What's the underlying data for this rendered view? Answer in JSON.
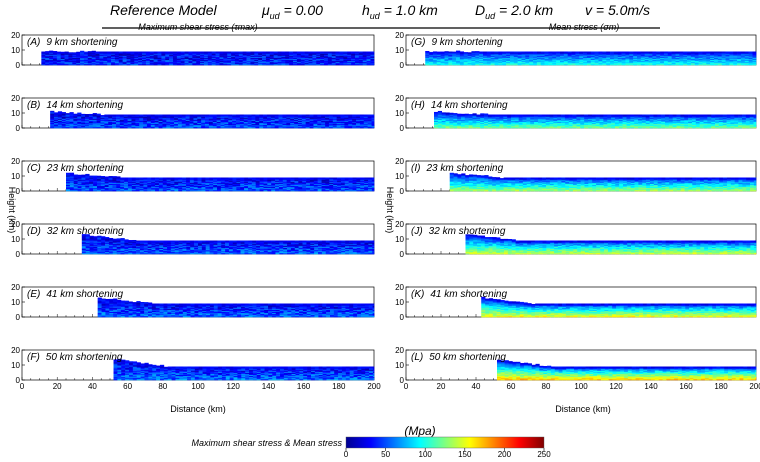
{
  "header": {
    "title": "Reference  Model",
    "mu": "μ",
    "mu_sub": "ud",
    "mu_val": " = 0.00",
    "h": "h",
    "h_sub": "ud",
    "h_val": " = 1.0 km",
    "D": "D",
    "D_sub": "ud",
    "D_val": " = 2.0 km",
    "v": "v = 5.0m/s"
  },
  "columns": {
    "left": "Maximum shear stress (τmax)",
    "right": "Mean stress (σm)"
  },
  "axes": {
    "ylabel": "Height (km)",
    "xlabel": "Distance (km)",
    "x_ticks": [
      "0",
      "20",
      "40",
      "60",
      "80",
      "100",
      "120",
      "140",
      "160",
      "180",
      "200"
    ],
    "y_ticks": [
      "0",
      "10",
      "20"
    ],
    "xlim": [
      0,
      200
    ],
    "ylim": [
      0,
      20
    ]
  },
  "colorbar": {
    "title": "(Mpa)",
    "label": "Maximum shear stress & Mean stress",
    "ticks": [
      "0",
      "50",
      "100",
      "150",
      "200",
      "250"
    ],
    "range": [
      0,
      250
    ]
  },
  "chart_data": {
    "type": "heatmap",
    "panels": [
      {
        "letter": "(A)",
        "label": "9 km shortening",
        "quantity": "max_shear",
        "col": 0,
        "row": 0,
        "x_start": 11,
        "x_end": 200,
        "thickness": 9,
        "max_height": 9,
        "level": 0.15
      },
      {
        "letter": "(B)",
        "label": "14 km shortening",
        "quantity": "max_shear",
        "col": 0,
        "row": 1,
        "x_start": 16,
        "x_end": 200,
        "thickness": 9,
        "max_height": 11,
        "level": 0.2
      },
      {
        "letter": "(C)",
        "label": "23 km shortening",
        "quantity": "max_shear",
        "col": 0,
        "row": 2,
        "x_start": 25,
        "x_end": 200,
        "thickness": 9,
        "max_height": 12,
        "level": 0.22
      },
      {
        "letter": "(D)",
        "label": "32 km shortening",
        "quantity": "max_shear",
        "col": 0,
        "row": 3,
        "x_start": 34,
        "x_end": 200,
        "thickness": 9,
        "max_height": 13,
        "level": 0.24
      },
      {
        "letter": "(E)",
        "label": "41 km shortening",
        "quantity": "max_shear",
        "col": 0,
        "row": 4,
        "x_start": 43,
        "x_end": 200,
        "thickness": 9,
        "max_height": 13,
        "level": 0.25
      },
      {
        "letter": "(F)",
        "label": "50 km shortening",
        "quantity": "max_shear",
        "col": 0,
        "row": 5,
        "x_start": 52,
        "x_end": 200,
        "thickness": 9,
        "max_height": 14,
        "level": 0.27
      },
      {
        "letter": "(G)",
        "label": "9 km shortening",
        "quantity": "mean_stress",
        "col": 1,
        "row": 0,
        "x_start": 11,
        "x_end": 200,
        "thickness": 9,
        "max_height": 9,
        "level": 0.3
      },
      {
        "letter": "(H)",
        "label": "14 km shortening",
        "quantity": "mean_stress",
        "col": 1,
        "row": 1,
        "x_start": 16,
        "x_end": 200,
        "thickness": 9,
        "max_height": 11,
        "level": 0.4
      },
      {
        "letter": "(I)",
        "label": "23 km shortening",
        "quantity": "mean_stress",
        "col": 1,
        "row": 2,
        "x_start": 25,
        "x_end": 200,
        "thickness": 9,
        "max_height": 12,
        "level": 0.45
      },
      {
        "letter": "(J)",
        "label": "32 km shortening",
        "quantity": "mean_stress",
        "col": 1,
        "row": 3,
        "x_start": 34,
        "x_end": 200,
        "thickness": 9,
        "max_height": 13,
        "level": 0.5
      },
      {
        "letter": "(K)",
        "label": "41 km shortening",
        "quantity": "mean_stress",
        "col": 1,
        "row": 4,
        "x_start": 43,
        "x_end": 200,
        "thickness": 9,
        "max_height": 13,
        "level": 0.55
      },
      {
        "letter": "(L)",
        "label": "50 km shortening",
        "quantity": "mean_stress",
        "col": 1,
        "row": 5,
        "x_start": 52,
        "x_end": 200,
        "thickness": 9,
        "max_height": 14,
        "level": 0.62
      }
    ]
  }
}
